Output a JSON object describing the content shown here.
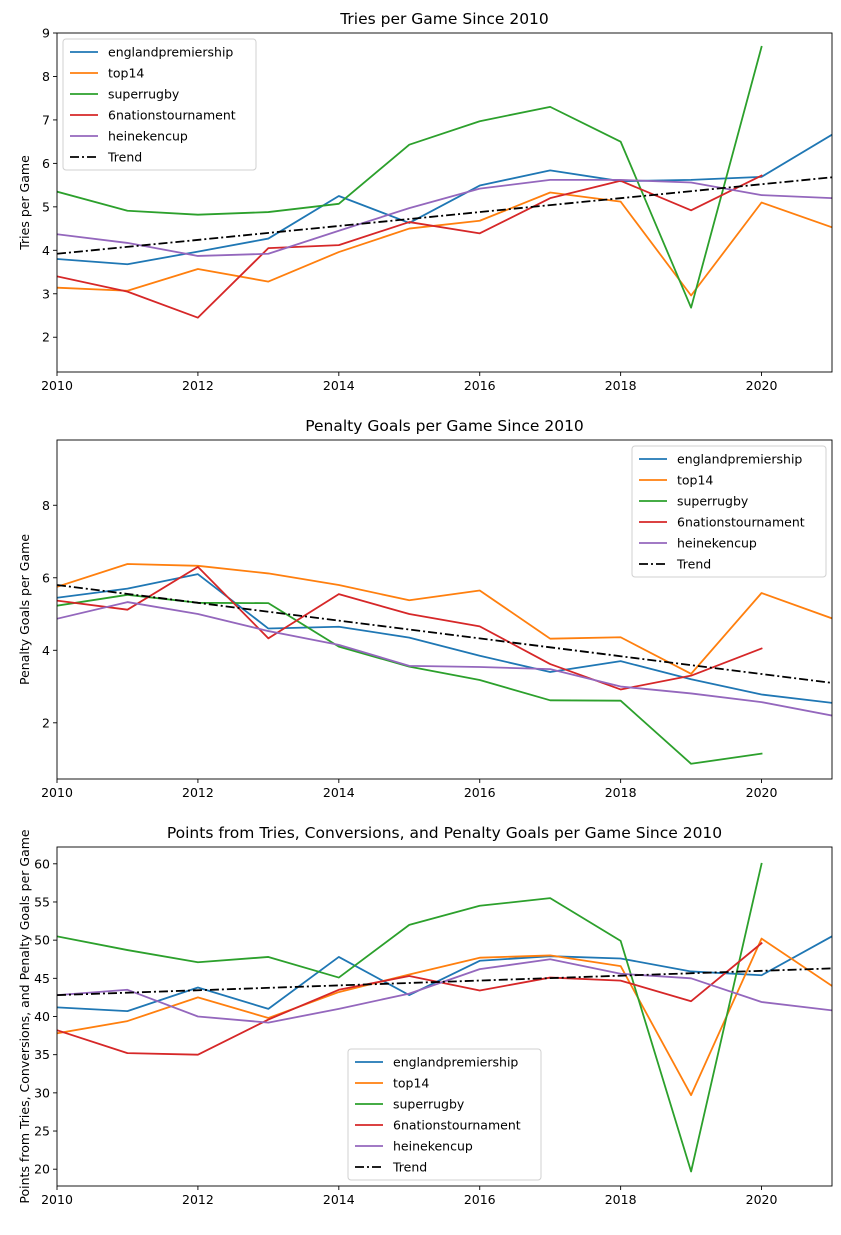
{
  "chart_data": [
    {
      "type": "line",
      "title": "Tries per Game Since 2010",
      "xlabel": "",
      "ylabel": "Tries per Game",
      "xlim": [
        2010,
        2021
      ],
      "ylim": [
        1.2,
        9
      ],
      "xticks": [
        2010,
        2012,
        2014,
        2016,
        2018,
        2020
      ],
      "yticks": [
        2,
        3,
        4,
        5,
        6,
        7,
        8,
        9
      ],
      "legend_position": "upper-left",
      "x": [
        2010,
        2011,
        2012,
        2013,
        2014,
        2015,
        2016,
        2017,
        2018,
        2019,
        2020,
        2021
      ],
      "series": [
        {
          "name": "englandpremiership",
          "color": "#1f77b4",
          "values": [
            3.8,
            3.68,
            3.97,
            4.27,
            5.25,
            4.63,
            5.49,
            5.84,
            5.59,
            5.62,
            5.69,
            6.66
          ]
        },
        {
          "name": "top14",
          "color": "#ff7f0e",
          "values": [
            3.14,
            3.07,
            3.57,
            3.28,
            3.96,
            4.5,
            4.68,
            5.33,
            5.12,
            2.96,
            5.1,
            4.53
          ]
        },
        {
          "name": "superrugby",
          "color": "#2ca02c",
          "values": [
            5.35,
            4.91,
            4.82,
            4.88,
            5.07,
            6.43,
            6.97,
            7.3,
            6.5,
            2.68,
            8.68,
            null
          ]
        },
        {
          "name": "6nationstournament",
          "color": "#d62728",
          "values": [
            3.4,
            3.05,
            2.45,
            4.05,
            4.12,
            4.65,
            4.39,
            5.2,
            5.6,
            4.92,
            5.72,
            null
          ]
        },
        {
          "name": "heinekencup",
          "color": "#9467bd",
          "values": [
            4.37,
            4.17,
            3.87,
            3.92,
            4.45,
            4.97,
            5.42,
            5.62,
            5.62,
            5.56,
            5.27,
            5.2
          ]
        }
      ],
      "trend": {
        "name": "Trend",
        "color": "#000000",
        "start": [
          2010,
          3.92
        ],
        "end": [
          2021,
          5.68
        ]
      }
    },
    {
      "type": "line",
      "title": "Penalty Goals per Game Since 2010",
      "xlabel": "",
      "ylabel": "Penalty Goals per Game",
      "xlim": [
        2010,
        2021
      ],
      "ylim": [
        0.45,
        9.8
      ],
      "xticks": [
        2010,
        2012,
        2014,
        2016,
        2018,
        2020
      ],
      "yticks": [
        2,
        4,
        6,
        8
      ],
      "legend_position": "upper-right",
      "x": [
        2010,
        2011,
        2012,
        2013,
        2014,
        2015,
        2016,
        2017,
        2018,
        2019,
        2020,
        2021
      ],
      "series": [
        {
          "name": "englandpremiership",
          "color": "#1f77b4",
          "values": [
            5.45,
            5.7,
            6.1,
            4.6,
            4.65,
            4.35,
            3.85,
            3.4,
            3.7,
            3.2,
            2.78,
            2.55
          ]
        },
        {
          "name": "top14",
          "color": "#ff7f0e",
          "values": [
            5.75,
            6.38,
            6.33,
            6.12,
            5.8,
            5.38,
            5.65,
            4.32,
            4.36,
            3.35,
            5.58,
            4.88
          ]
        },
        {
          "name": "superrugby",
          "color": "#2ca02c",
          "values": [
            5.23,
            5.53,
            5.31,
            5.3,
            4.1,
            3.55,
            3.18,
            2.62,
            2.61,
            0.87,
            1.15,
            null
          ]
        },
        {
          "name": "6nationstournament",
          "color": "#d62728",
          "values": [
            5.37,
            5.12,
            6.3,
            4.33,
            5.55,
            5.0,
            4.66,
            3.62,
            2.92,
            3.3,
            4.05,
            null
          ]
        },
        {
          "name": "heinekencup",
          "color": "#9467bd",
          "values": [
            4.87,
            5.33,
            5.0,
            4.53,
            4.15,
            3.57,
            3.54,
            3.48,
            3.0,
            2.81,
            2.57,
            2.2
          ]
        }
      ],
      "trend": {
        "name": "Trend",
        "color": "#000000",
        "start": [
          2010,
          5.8
        ],
        "end": [
          2021,
          3.1
        ]
      }
    },
    {
      "type": "line",
      "title": "Points from Tries, Conversions, and Penalty Goals per Game Since 2010",
      "xlabel": "",
      "ylabel": "Points from Tries, Conversions, and Penalty Goals per Game",
      "xlim": [
        2010,
        2021
      ],
      "ylim": [
        17.8,
        62.2
      ],
      "xticks": [
        2010,
        2012,
        2014,
        2016,
        2018,
        2020
      ],
      "yticks": [
        20,
        25,
        30,
        35,
        40,
        45,
        50,
        55,
        60
      ],
      "legend_position": "lower-center",
      "x": [
        2010,
        2011,
        2012,
        2013,
        2014,
        2015,
        2016,
        2017,
        2018,
        2019,
        2020,
        2021
      ],
      "series": [
        {
          "name": "englandpremiership",
          "color": "#1f77b4",
          "values": [
            41.2,
            40.7,
            43.8,
            41.0,
            47.8,
            42.8,
            47.3,
            47.9,
            47.6,
            45.9,
            45.4,
            50.5
          ]
        },
        {
          "name": "top14",
          "color": "#ff7f0e",
          "values": [
            37.8,
            39.4,
            42.5,
            39.8,
            43.2,
            45.5,
            47.7,
            48.0,
            46.6,
            29.7,
            50.2,
            44.0
          ]
        },
        {
          "name": "superrugby",
          "color": "#2ca02c",
          "values": [
            50.5,
            48.7,
            47.1,
            47.8,
            45.1,
            52.0,
            54.5,
            55.5,
            49.9,
            19.7,
            60.0,
            null
          ]
        },
        {
          "name": "6nationstournament",
          "color": "#d62728",
          "values": [
            38.2,
            35.2,
            35.0,
            39.6,
            43.5,
            45.3,
            43.4,
            45.1,
            44.7,
            42.0,
            49.6,
            null
          ]
        },
        {
          "name": "heinekencup",
          "color": "#9467bd",
          "values": [
            42.8,
            43.5,
            40.0,
            39.2,
            41.0,
            43.0,
            46.2,
            47.5,
            45.6,
            45.0,
            41.9,
            40.8
          ]
        }
      ],
      "trend": {
        "name": "Trend",
        "color": "#000000",
        "start": [
          2010,
          42.8
        ],
        "end": [
          2021,
          46.3
        ]
      }
    }
  ]
}
